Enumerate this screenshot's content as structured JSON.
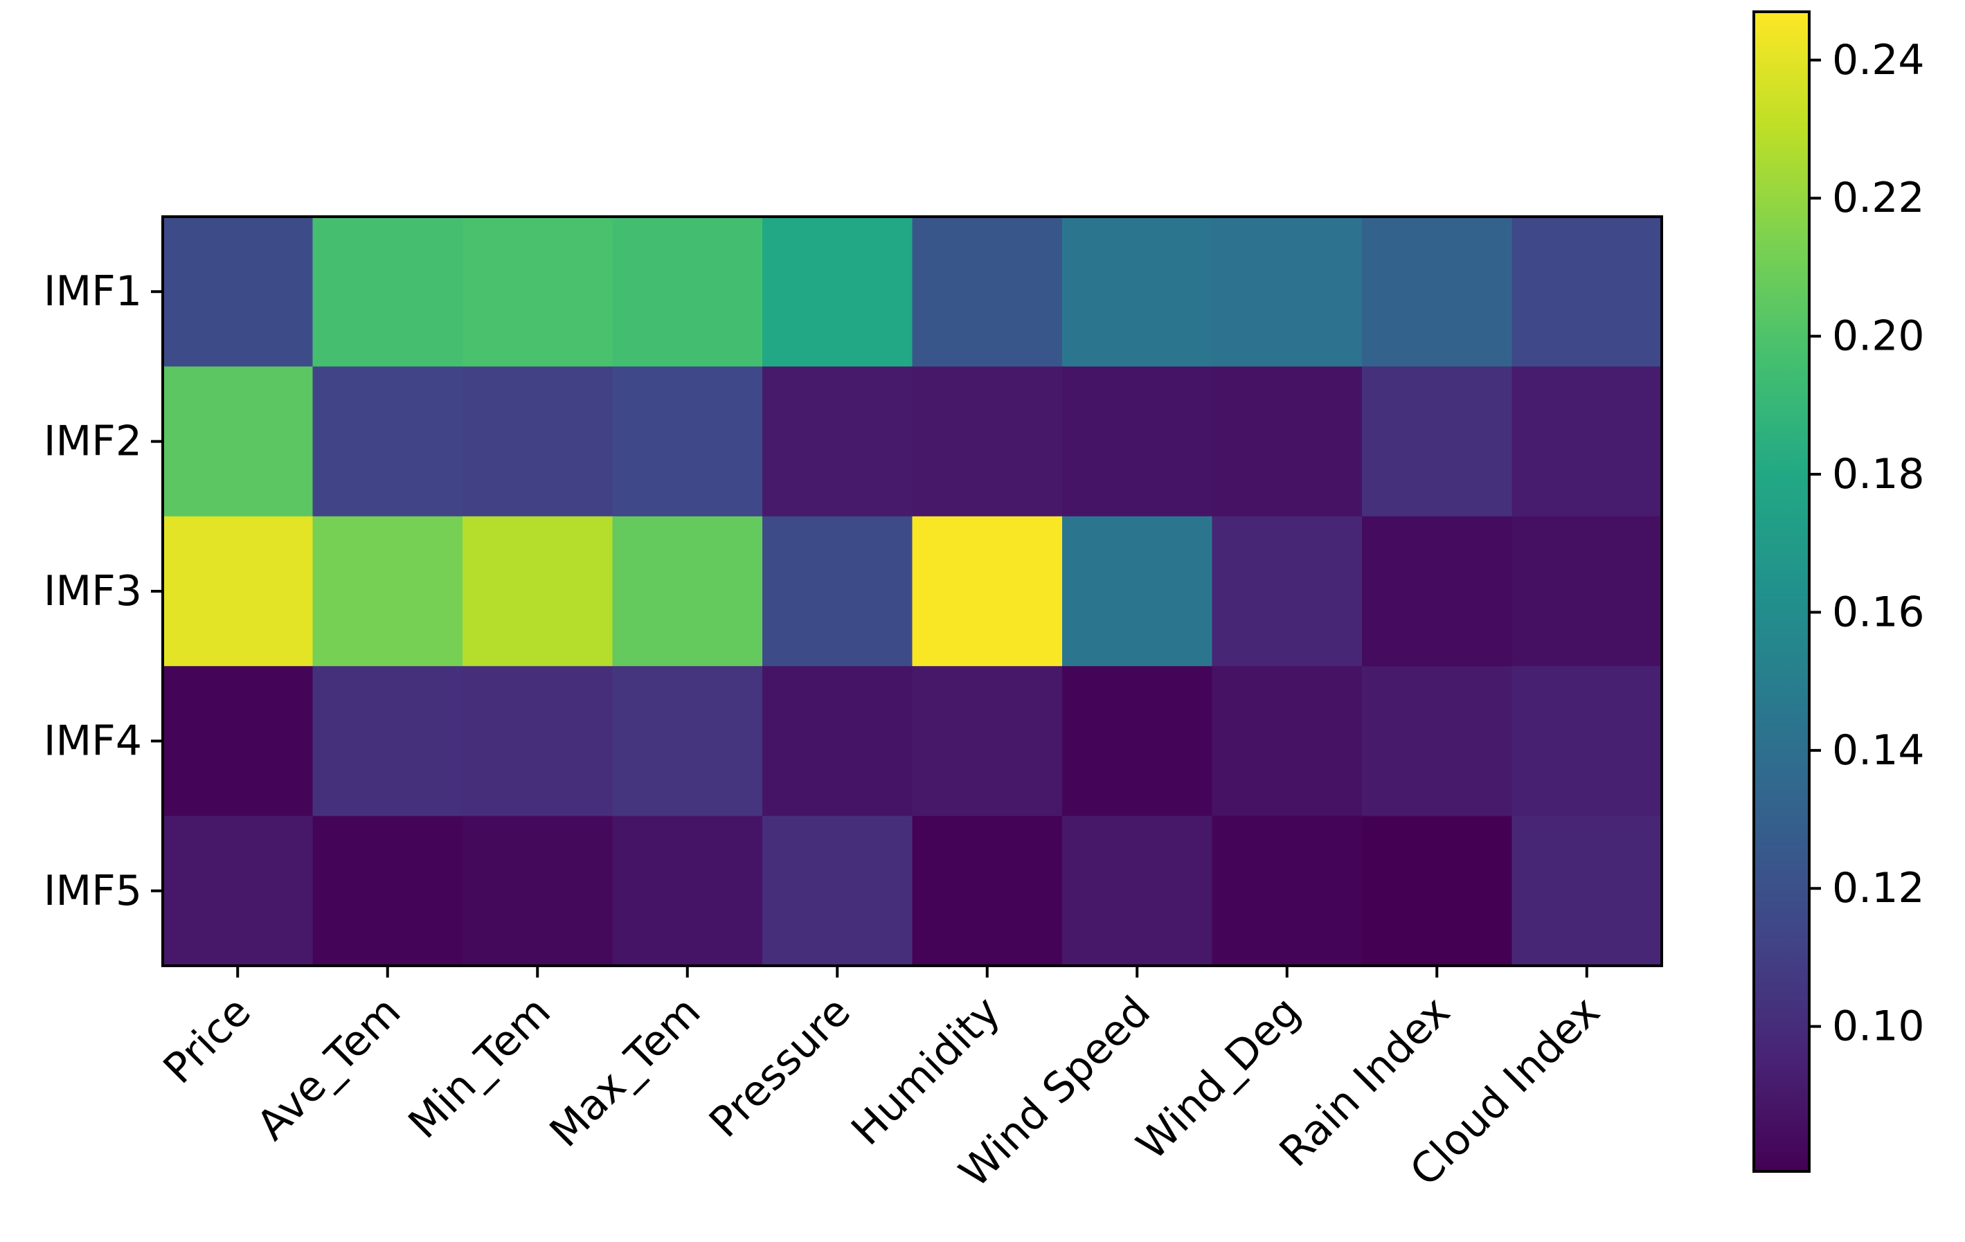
{
  "chart_data": {
    "type": "heatmap",
    "title": "",
    "xlabel": "",
    "ylabel": "",
    "columns": [
      "Price",
      "Ave_Tem",
      "Min_Tem",
      "Max_Tem",
      "Pressure",
      "Humidity",
      "Wind Speed",
      "Wind_Deg",
      "Rain Index",
      "Cloud Index"
    ],
    "rows": [
      "IMF1",
      "IMF2",
      "IMF3",
      "IMF4",
      "IMF5"
    ],
    "values": [
      [
        0.117,
        0.197,
        0.198,
        0.196,
        0.18,
        0.124,
        0.145,
        0.142,
        0.132,
        0.115
      ],
      [
        0.204,
        0.113,
        0.111,
        0.115,
        0.091,
        0.09,
        0.088,
        0.087,
        0.102,
        0.092
      ],
      [
        0.24,
        0.212,
        0.228,
        0.207,
        0.117,
        0.246,
        0.145,
        0.097,
        0.084,
        0.086
      ],
      [
        0.081,
        0.102,
        0.101,
        0.104,
        0.088,
        0.09,
        0.081,
        0.087,
        0.091,
        0.094
      ],
      [
        0.09,
        0.081,
        0.083,
        0.088,
        0.101,
        0.08,
        0.09,
        0.081,
        0.079,
        0.097
      ]
    ],
    "colormap": "viridis",
    "vmin": 0.079,
    "vmax": 0.247,
    "colorbar_ticks": [
      "0.10",
      "0.12",
      "0.14",
      "0.16",
      "0.18",
      "0.20",
      "0.22",
      "0.24"
    ],
    "colorbar_tick_values": [
      0.1,
      0.12,
      0.14,
      0.16,
      0.18,
      0.2,
      0.22,
      0.24
    ],
    "grid": false,
    "legend": "colorbar-right"
  }
}
